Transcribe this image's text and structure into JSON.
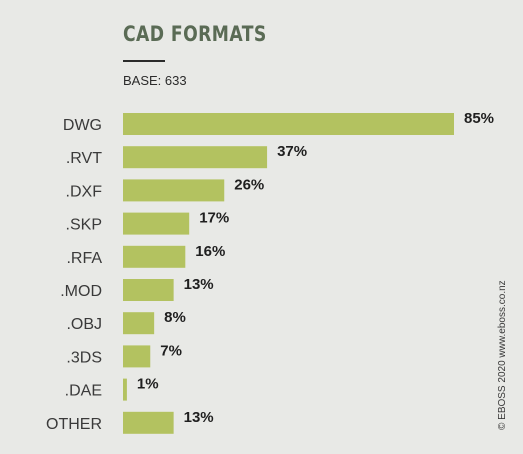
{
  "title": "CAD FORMATS",
  "base_text": "BASE: 633",
  "credit": "© EBOSS 2020 www.eboss.co.nz",
  "colors": {
    "bar": "#b3c260",
    "background": "#e8e9e6",
    "title": "#5a6b55"
  },
  "chart_data": {
    "type": "bar",
    "orientation": "horizontal",
    "categories": [
      "DWG",
      ".RVT",
      ".DXF",
      ".SKP",
      ".RFA",
      ".MOD",
      ".OBJ",
      ".3DS",
      ".DAE",
      "OTHER"
    ],
    "values": [
      85,
      37,
      26,
      17,
      16,
      13,
      8,
      7,
      1,
      13
    ],
    "value_labels": [
      "85%",
      "37%",
      "26%",
      "17%",
      "16%",
      "13%",
      "8%",
      "7%",
      "1%",
      "13%"
    ],
    "xlim": [
      0,
      85
    ],
    "grid": false,
    "legend": false
  }
}
